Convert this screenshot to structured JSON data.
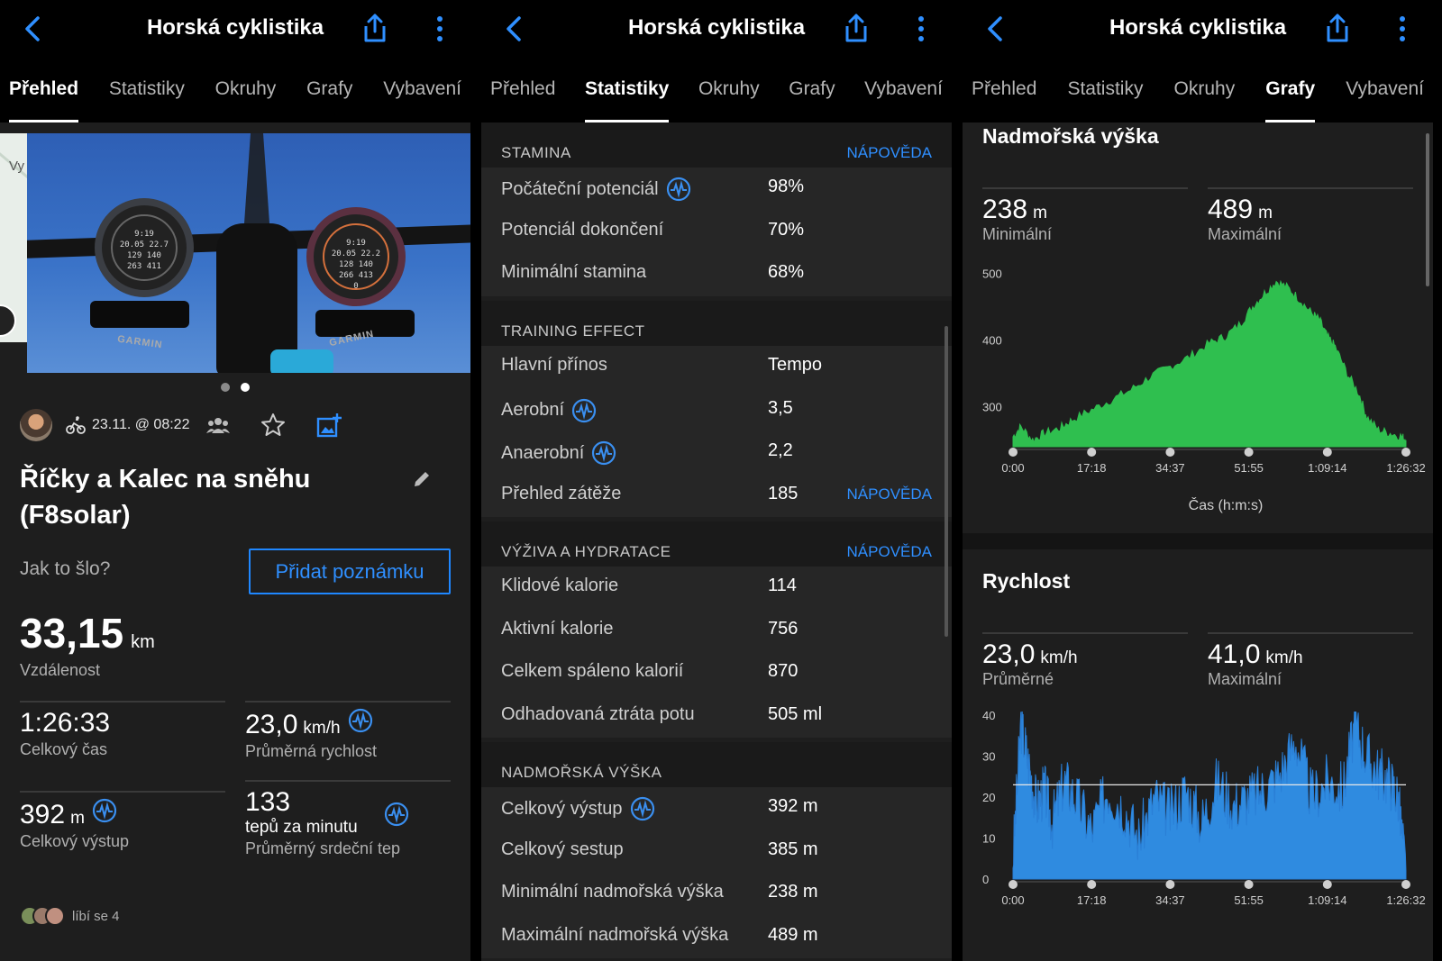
{
  "common": {
    "title": "Horská cyklistika",
    "tabs": [
      "Přehled",
      "Statistiky",
      "Okruhy",
      "Grafy",
      "Vybavení"
    ]
  },
  "overview": {
    "active_tab": "Přehled",
    "photo_watch_left": [
      "9:19",
      "20.05",
      "129",
      "263",
      "22.7",
      "140",
      "411"
    ],
    "photo_watch_right": [
      "9:19",
      "20.05",
      "22.2",
      "128",
      "140",
      "266",
      "413",
      "0"
    ],
    "photo_brand": "GARMIN",
    "map_label": "Vy",
    "date": "23.11. @ 08:22",
    "activity_title": "Říčky a Kalec na sněhu (F8solar)",
    "how_prompt": "Jak to šlo?",
    "add_note_label": "Přidat poznámku",
    "distance": {
      "value": "33,15",
      "unit": "km",
      "label": "Vzdálenost"
    },
    "time": {
      "value": "1:26:33",
      "label": "Celkový čas"
    },
    "speed": {
      "value": "23,0",
      "unit": "km/h",
      "label": "Průměrná rychlost"
    },
    "ascent": {
      "value": "392",
      "unit": "m",
      "label": "Celkový výstup"
    },
    "hr": {
      "value": "133",
      "unit": "tepů za minutu",
      "label": "Průměrný srdeční tep"
    },
    "likes": "líbí se 4"
  },
  "stats": {
    "active_tab": "Statistiky",
    "help_label": "NÁPOVĚDA",
    "stamina": {
      "title": "STAMINA",
      "rows": [
        {
          "k": "Počáteční potenciál",
          "v": "98%",
          "icon": true
        },
        {
          "k": "Potenciál dokončení",
          "v": "70%"
        },
        {
          "k": "Minimální stamina",
          "v": "68%"
        }
      ]
    },
    "training": {
      "title": "TRAINING EFFECT",
      "rows": [
        {
          "k": "Hlavní přínos",
          "v": "Tempo"
        },
        {
          "k": "Aerobní",
          "v": "3,5",
          "icon": true
        },
        {
          "k": "Anaerobní",
          "v": "2,2",
          "icon": true
        },
        {
          "k": "Přehled zátěže",
          "v": "185",
          "help": true
        }
      ]
    },
    "nutrition": {
      "title": "VÝŽIVA A HYDRATACE",
      "rows": [
        {
          "k": "Klidové kalorie",
          "v": "114"
        },
        {
          "k": "Aktivní kalorie",
          "v": "756"
        },
        {
          "k": "Celkem spáleno kalorií",
          "v": "870"
        },
        {
          "k": "Odhadovaná ztráta potu",
          "v": "505 ml"
        }
      ]
    },
    "elevation": {
      "title": "NADMOŘSKÁ VÝŠKA",
      "rows": [
        {
          "k": "Celkový výstup",
          "v": "392 m",
          "icon": true
        },
        {
          "k": "Celkový sestup",
          "v": "385 m"
        },
        {
          "k": "Minimální nadmořská výška",
          "v": "238 m"
        },
        {
          "k": "Maximální nadmořská výška",
          "v": "489 m"
        }
      ]
    }
  },
  "graphs": {
    "active_tab": "Grafy",
    "elevation": {
      "title": "Nadmořská výška",
      "min": {
        "value": "238",
        "unit": "m",
        "label": "Minimální"
      },
      "max": {
        "value": "489",
        "unit": "m",
        "label": "Maximální"
      },
      "xlabel": "Čas (h:m:s)"
    },
    "speed": {
      "title": "Rychlost",
      "avg": {
        "value": "23,0",
        "unit": "km/h",
        "label": "Průměrné"
      },
      "max": {
        "value": "41,0",
        "unit": "km/h",
        "label": "Maximální"
      }
    }
  },
  "chart_data": [
    {
      "type": "area",
      "title": "Nadmořská výška",
      "xlabel": "Čas (h:m:s)",
      "ylabel": "",
      "x_ticks": [
        "0:00",
        "17:18",
        "34:37",
        "51:55",
        "1:09:14",
        "1:26:32"
      ],
      "y_ticks": [
        300,
        400,
        500
      ],
      "ylim": [
        240,
        510
      ],
      "color": "#2fbf4f",
      "x": [
        0,
        2,
        5,
        8,
        12,
        15,
        20,
        25,
        30,
        35,
        40,
        45,
        50,
        54,
        58,
        61,
        64,
        67,
        70,
        73,
        76,
        78,
        80,
        82,
        85,
        88,
        90,
        93,
        96,
        99,
        100
      ],
      "values": [
        255,
        270,
        250,
        260,
        268,
        280,
        295,
        310,
        325,
        345,
        360,
        375,
        395,
        405,
        425,
        450,
        470,
        488,
        478,
        460,
        440,
        430,
        405,
        390,
        350,
        320,
        285,
        265,
        260,
        255,
        250
      ]
    },
    {
      "type": "area",
      "title": "Rychlost",
      "y_ticks": [
        0,
        10,
        20,
        30,
        40
      ],
      "ylim": [
        0,
        40
      ],
      "x_ticks": [
        "0:00",
        "17:18",
        "34:37",
        "51:55",
        "1:09:14",
        "1:26:32"
      ],
      "average": 23.0,
      "color": "#2f8be0",
      "x": [
        0,
        2,
        4,
        6,
        8,
        10,
        13,
        16,
        20,
        24,
        28,
        32,
        36,
        40,
        44,
        48,
        52,
        56,
        60,
        64,
        68,
        72,
        76,
        80,
        84,
        87,
        90,
        93,
        96,
        98,
        100
      ],
      "values": [
        5,
        38,
        28,
        18,
        22,
        14,
        24,
        20,
        12,
        22,
        18,
        10,
        20,
        16,
        22,
        14,
        24,
        18,
        20,
        22,
        26,
        34,
        20,
        24,
        22,
        38,
        30,
        26,
        24,
        20,
        2
      ]
    }
  ]
}
